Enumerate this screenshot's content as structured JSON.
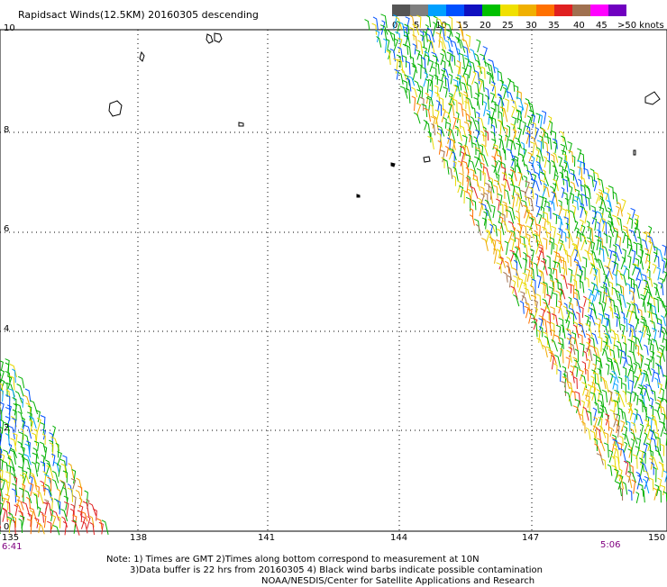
{
  "title": "Rapidsact Winds(12.5KM) 20160305 descending",
  "legend": {
    "colors": [
      "#555555",
      "#7f7f7f",
      "#00a0ff",
      "#0050ff",
      "#1010c0",
      "#00c000",
      "#f0e000",
      "#f0b000",
      "#ff7000",
      "#e02020",
      "#a07050",
      "#ff00ff",
      "#7000c0"
    ],
    "labels": [
      "0",
      "5",
      "10",
      "15",
      "20",
      "25",
      "30",
      "35",
      "40",
      "45",
      ">50 knots"
    ]
  },
  "axes": {
    "lat_labels": [
      "10",
      "8",
      "6",
      "4",
      "2",
      "0"
    ],
    "lon_labels": [
      "135",
      "138",
      "141",
      "144",
      "147",
      "150"
    ]
  },
  "times": {
    "left": "6:41",
    "right": "5:06"
  },
  "notes": [
    "Note: 1) Times are GMT 2)Times along bottom correspond to measurement at 10N",
    "3)Data buffer is 22 hrs from 20160305 4) Black wind barbs indicate possible contamination",
    "NOAA/NESDIS/Center for Satellite Applications and Research"
  ]
}
